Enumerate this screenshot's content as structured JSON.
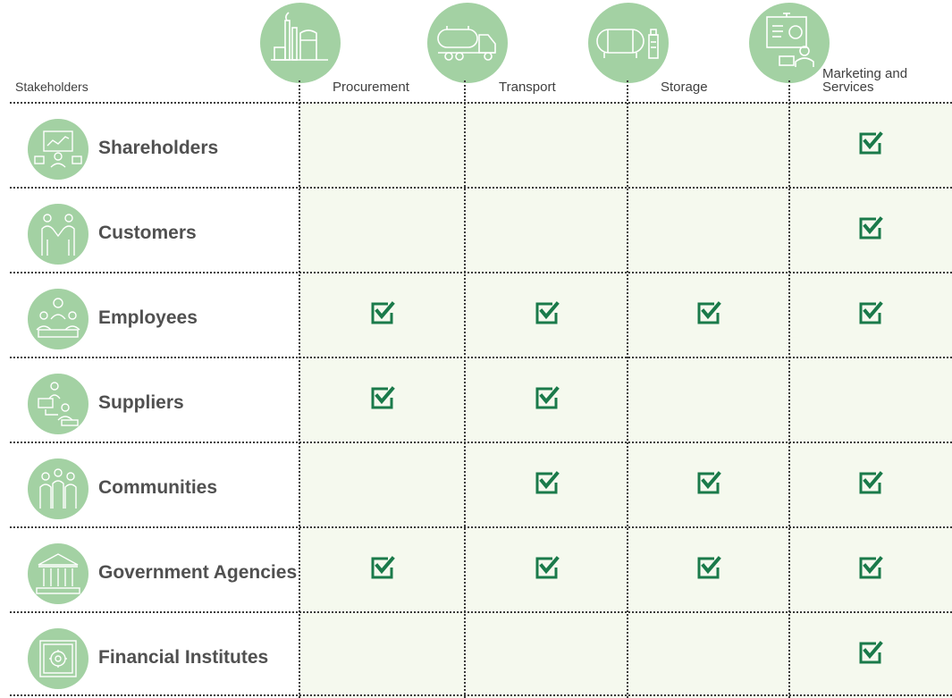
{
  "header": {
    "stakeholders_label": "Stakeholders",
    "columns": [
      {
        "label": "Procurement",
        "icon": "refinery-icon"
      },
      {
        "label": "Transport",
        "icon": "tanker-truck-icon"
      },
      {
        "label": "Storage",
        "icon": "storage-tank-icon"
      },
      {
        "label": "Marketing and Services",
        "icon": "presentation-icon"
      }
    ]
  },
  "rows": [
    {
      "label": "Shareholders",
      "icon": "shareholders-meeting-icon",
      "checks": [
        false,
        false,
        false,
        true
      ]
    },
    {
      "label": "Customers",
      "icon": "handshake-icon",
      "checks": [
        false,
        false,
        false,
        true
      ]
    },
    {
      "label": "Employees",
      "icon": "team-icon",
      "checks": [
        true,
        true,
        true,
        true
      ]
    },
    {
      "label": "Suppliers",
      "icon": "supplier-network-icon",
      "checks": [
        true,
        true,
        false,
        false
      ]
    },
    {
      "label": "Communities",
      "icon": "community-icon",
      "checks": [
        false,
        true,
        true,
        true
      ]
    },
    {
      "label": "Government Agencies",
      "icon": "government-building-icon",
      "checks": [
        true,
        true,
        true,
        true
      ]
    },
    {
      "label": "Financial Institutes",
      "icon": "safe-icon",
      "checks": [
        false,
        false,
        false,
        true
      ]
    }
  ],
  "colors": {
    "circle": "#a3d1a3",
    "check": "#1a7a4a",
    "cell_background": "#f5f9ee"
  }
}
